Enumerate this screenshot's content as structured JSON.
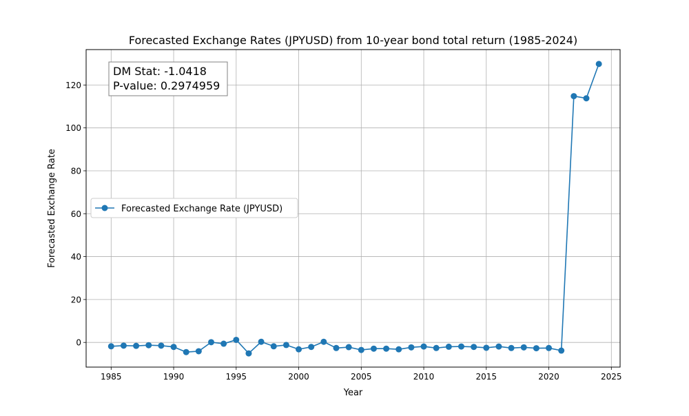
{
  "chart_data": {
    "type": "line",
    "title": "Forecasted Exchange Rates (JPYUSD) from 10-year bond total return (1985-2024)",
    "xlabel": "Year",
    "ylabel": "Forecasted Exchange Rate",
    "xlim": [
      1983,
      2025.7
    ],
    "ylim": [
      -11.5,
      136.5
    ],
    "xticks": [
      1985,
      1990,
      1995,
      2000,
      2005,
      2010,
      2015,
      2020,
      2025
    ],
    "yticks": [
      0,
      20,
      40,
      60,
      80,
      100,
      120
    ],
    "grid": true,
    "legend_position": "center-left",
    "annotation": {
      "lines": [
        "DM Stat: -1.0418",
        "P-value: 0.2974959"
      ],
      "position": "top-left"
    },
    "series": [
      {
        "name": "Forecasted Exchange Rate (JPYUSD)",
        "color": "#1f77b4",
        "marker": "circle",
        "x": [
          1985,
          1986,
          1987,
          1988,
          1989,
          1990,
          1991,
          1992,
          1993,
          1994,
          1995,
          1996,
          1997,
          1998,
          1999,
          2000,
          2001,
          2002,
          2003,
          2004,
          2005,
          2006,
          2007,
          2008,
          2009,
          2010,
          2011,
          2012,
          2013,
          2014,
          2015,
          2016,
          2017,
          2018,
          2019,
          2020,
          2021,
          2022,
          2023,
          2024
        ],
        "y": [
          -1.8,
          -1.5,
          -1.6,
          -1.3,
          -1.5,
          -2.1,
          -4.5,
          -4.1,
          0.1,
          -0.6,
          1.2,
          -5.1,
          0.3,
          -1.8,
          -1.2,
          -3.2,
          -2.1,
          0.3,
          -2.6,
          -2.2,
          -3.5,
          -2.9,
          -2.9,
          -3.2,
          -2.3,
          -1.9,
          -2.6,
          -2.0,
          -1.9,
          -2.1,
          -2.5,
          -1.9,
          -2.6,
          -2.3,
          -2.7,
          -2.6,
          -3.8,
          114.8,
          113.8,
          129.8
        ]
      }
    ]
  }
}
